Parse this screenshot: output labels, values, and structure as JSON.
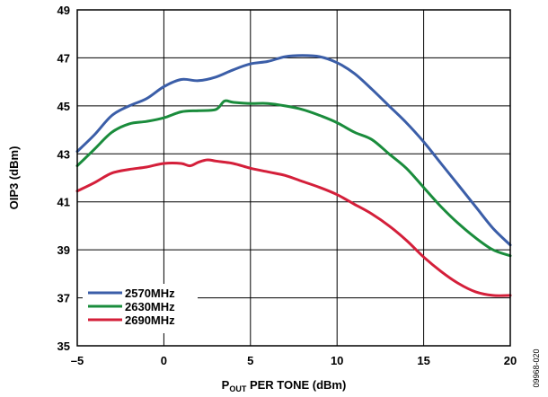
{
  "chart_data": {
    "type": "line",
    "title": "",
    "xlabel_main": "P",
    "xlabel_sub": "OUT",
    "xlabel_rest": " PER TONE (dBm)",
    "ylabel": "OIP3 (dBm)",
    "xlim": [
      -5,
      20
    ],
    "ylim": [
      35,
      49
    ],
    "x_ticks": [
      -5,
      0,
      5,
      10,
      15,
      20
    ],
    "x_tick_labels": [
      "–5",
      "0",
      "5",
      "10",
      "15",
      "20"
    ],
    "y_ticks": [
      35,
      37,
      39,
      41,
      43,
      45,
      47,
      49
    ],
    "y_tick_labels": [
      "35",
      "37",
      "39",
      "41",
      "43",
      "45",
      "47",
      "49"
    ],
    "grid": true,
    "legend_position": "bottom-left",
    "series": [
      {
        "name": "2570MHz",
        "color": "#3b5ea8",
        "points": [
          [
            -5,
            43.1
          ],
          [
            -4,
            43.8
          ],
          [
            -3,
            44.6
          ],
          [
            -2,
            45.0
          ],
          [
            -1,
            45.3
          ],
          [
            0,
            45.8
          ],
          [
            1,
            46.1
          ],
          [
            2,
            46.05
          ],
          [
            3,
            46.2
          ],
          [
            4,
            46.5
          ],
          [
            5,
            46.75
          ],
          [
            6,
            46.85
          ],
          [
            7,
            47.05
          ],
          [
            8,
            47.1
          ],
          [
            9,
            47.05
          ],
          [
            10,
            46.8
          ],
          [
            11,
            46.35
          ],
          [
            12,
            45.7
          ],
          [
            13,
            45.0
          ],
          [
            14,
            44.3
          ],
          [
            15,
            43.5
          ],
          [
            16,
            42.6
          ],
          [
            17,
            41.7
          ],
          [
            18,
            40.8
          ],
          [
            19,
            39.9
          ],
          [
            20,
            39.2
          ]
        ]
      },
      {
        "name": "2630MHz",
        "color": "#1a8c3c",
        "points": [
          [
            -5,
            42.5
          ],
          [
            -4,
            43.2
          ],
          [
            -3,
            43.9
          ],
          [
            -2,
            44.25
          ],
          [
            -1,
            44.35
          ],
          [
            0,
            44.5
          ],
          [
            1,
            44.75
          ],
          [
            2,
            44.8
          ],
          [
            3,
            44.85
          ],
          [
            3.5,
            45.2
          ],
          [
            4,
            45.15
          ],
          [
            5,
            45.1
          ],
          [
            6,
            45.1
          ],
          [
            7,
            45.0
          ],
          [
            8,
            44.85
          ],
          [
            9,
            44.6
          ],
          [
            10,
            44.3
          ],
          [
            11,
            43.9
          ],
          [
            12,
            43.6
          ],
          [
            13,
            43.0
          ],
          [
            14,
            42.4
          ],
          [
            15,
            41.6
          ],
          [
            16,
            40.8
          ],
          [
            17,
            40.1
          ],
          [
            18,
            39.5
          ],
          [
            19,
            39.0
          ],
          [
            20,
            38.75
          ]
        ]
      },
      {
        "name": "2690MHz",
        "color": "#d41f3a",
        "points": [
          [
            -5,
            41.45
          ],
          [
            -4,
            41.8
          ],
          [
            -3,
            42.2
          ],
          [
            -2,
            42.35
          ],
          [
            -1,
            42.45
          ],
          [
            0,
            42.6
          ],
          [
            1,
            42.6
          ],
          [
            1.5,
            42.5
          ],
          [
            2,
            42.65
          ],
          [
            2.5,
            42.75
          ],
          [
            3,
            42.7
          ],
          [
            4,
            42.6
          ],
          [
            5,
            42.4
          ],
          [
            6,
            42.25
          ],
          [
            7,
            42.1
          ],
          [
            8,
            41.85
          ],
          [
            9,
            41.6
          ],
          [
            10,
            41.3
          ],
          [
            11,
            40.9
          ],
          [
            12,
            40.5
          ],
          [
            13,
            40.0
          ],
          [
            14,
            39.4
          ],
          [
            15,
            38.7
          ],
          [
            16,
            38.1
          ],
          [
            17,
            37.6
          ],
          [
            18,
            37.25
          ],
          [
            19,
            37.1
          ],
          [
            20,
            37.1
          ]
        ]
      }
    ]
  },
  "figure_id": "09968-020"
}
